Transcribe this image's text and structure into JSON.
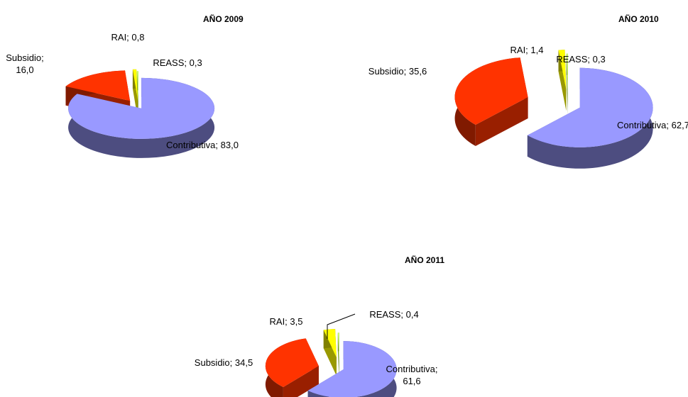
{
  "chart_data": [
    {
      "type": "pie",
      "title": "AÑO 2009",
      "values": [
        83.0,
        16.0,
        0.8,
        0.3
      ],
      "value_labels": [
        "Contributiva; 83,0",
        "Subsidio; 16,0",
        "RAI; 0,8",
        "REASS; 0,3"
      ],
      "colors": [
        "#9999ff",
        "#ff3300",
        "#ffff00",
        "#ccff66"
      ]
    },
    {
      "type": "pie",
      "title": "AÑO 2010",
      "values": [
        62.7,
        35.6,
        1.4,
        0.3
      ],
      "value_labels": [
        "Contributiva; 62,7",
        "Subsidio; 35,6",
        "RAI; 1,4",
        "REASS; 0,3"
      ],
      "colors": [
        "#9999ff",
        "#ff3300",
        "#ffff00",
        "#ccff66"
      ]
    },
    {
      "type": "pie",
      "title": "AÑO 2011",
      "values": [
        61.6,
        34.5,
        3.5,
        0.4
      ],
      "value_labels": [
        "Contributiva; 61,6",
        "Subsidio; 34,5",
        "RAI; 3,5",
        "REASS; 0,4"
      ],
      "colors": [
        "#9999ff",
        "#ff3300",
        "#ffff00",
        "#ccff66"
      ]
    }
  ]
}
